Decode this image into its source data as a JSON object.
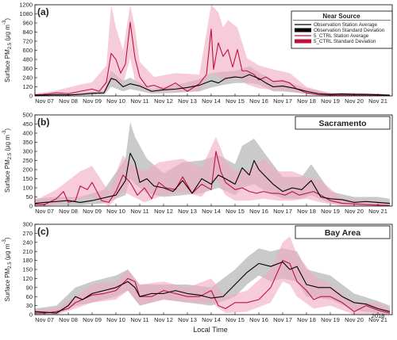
{
  "figure": {
    "xlabel": "Local Time",
    "year_label": "2018",
    "ylabel": "Surface PM",
    "ylabel_sub": "2.5",
    "ylabel_unit": "(μg m",
    "ylabel_unit_sup": "-3",
    "ylabel_close": ")",
    "x_ticks": [
      "Nov 07",
      "Nov 08",
      "Nov 09",
      "Nov 10",
      "Nov 11",
      "Nov 12",
      "Nov 13",
      "Nov 14",
      "Nov 15",
      "Nov 16",
      "Nov 17",
      "Nov 18",
      "Nov 19",
      "Nov 20",
      "Nov 21"
    ],
    "colors": {
      "obs_line": "#000000",
      "obs_band": "#b8b8b8",
      "model_line": "#c0103c",
      "model_band": "#f2aac2"
    },
    "legend": {
      "title": "Near Source",
      "items": [
        {
          "label": "Observation Station Average",
          "kind": "obs_line"
        },
        {
          "label": "Observation Standard Deviation",
          "kind": "obs_band"
        },
        {
          "label": "5_CTRL Station Average",
          "kind": "model_line"
        },
        {
          "label": "5_CTRL Standard Deviation",
          "kind": "model_band"
        }
      ]
    }
  },
  "chart_data": [
    {
      "type": "line",
      "panel": "(a)",
      "box_title": "",
      "xlim": [
        6.6,
        21.6
      ],
      "ylim": [
        0,
        1200
      ],
      "yticks": [
        0,
        120,
        240,
        360,
        480,
        600,
        720,
        840,
        960,
        1080,
        1200
      ],
      "series": [
        {
          "name": "Observation Station Average",
          "x": [
            6.6,
            7.0,
            7.5,
            8.0,
            8.5,
            9.0,
            9.5,
            9.8,
            10.0,
            10.3,
            10.6,
            11.0,
            11.5,
            12.0,
            12.5,
            13.0,
            13.5,
            14.0,
            14.3,
            14.6,
            15.0,
            15.3,
            15.6,
            16.0,
            16.3,
            16.6,
            17.0,
            17.5,
            18.0,
            18.5,
            19.0,
            19.5,
            20.0,
            20.5,
            21.0,
            21.5
          ],
          "y": [
            8,
            10,
            15,
            12,
            20,
            35,
            40,
            230,
            210,
            120,
            160,
            130,
            60,
            80,
            90,
            110,
            140,
            200,
            170,
            230,
            250,
            240,
            280,
            230,
            170,
            120,
            130,
            100,
            60,
            30,
            20,
            25,
            20,
            20,
            15,
            10
          ]
        },
        {
          "name": "5_CTRL Station Average",
          "x": [
            6.6,
            7.0,
            7.5,
            8.0,
            8.5,
            9.0,
            9.3,
            9.6,
            9.8,
            10.0,
            10.2,
            10.4,
            10.6,
            10.8,
            11.0,
            11.3,
            11.6,
            12.0,
            12.5,
            13.0,
            13.5,
            13.8,
            14.0,
            14.1,
            14.3,
            14.5,
            14.7,
            14.9,
            15.1,
            15.3,
            15.5,
            15.8,
            16.0,
            16.3,
            16.6,
            17.0,
            17.3,
            17.6,
            18.0,
            18.5,
            19.0,
            19.5,
            20.0,
            20.5,
            21.0,
            21.5
          ],
          "y": [
            15,
            20,
            40,
            30,
            60,
            90,
            60,
            180,
            560,
            480,
            300,
            420,
            970,
            500,
            250,
            120,
            140,
            90,
            170,
            60,
            160,
            280,
            880,
            350,
            700,
            520,
            610,
            380,
            610,
            330,
            330,
            280,
            210,
            250,
            190,
            200,
            170,
            90,
            40,
            15,
            10,
            10,
            12,
            8,
            6,
            5
          ]
        }
      ],
      "bands": [
        {
          "name": "Observation Standard Deviation",
          "x": [
            6.6,
            7.5,
            8.5,
            9.5,
            9.8,
            10.3,
            10.6,
            11.5,
            12.5,
            13.5,
            14.0,
            14.6,
            15.0,
            15.6,
            16.0,
            16.6,
            17.0,
            18.0,
            19.0,
            20.0,
            21.0,
            21.5
          ],
          "lower": [
            0,
            5,
            10,
            15,
            120,
            60,
            90,
            30,
            40,
            60,
            110,
            150,
            170,
            170,
            150,
            60,
            60,
            30,
            10,
            10,
            5,
            5
          ],
          "upper": [
            20,
            30,
            40,
            70,
            330,
            200,
            240,
            90,
            140,
            220,
            300,
            320,
            330,
            390,
            310,
            200,
            200,
            100,
            40,
            40,
            30,
            20
          ]
        },
        {
          "name": "5_CTRL Standard Deviation",
          "x": [
            6.6,
            7.5,
            8.5,
            9.0,
            9.6,
            9.8,
            10.0,
            10.3,
            10.6,
            10.8,
            11.0,
            11.6,
            12.5,
            13.5,
            14.0,
            14.3,
            14.5,
            14.7,
            15.1,
            15.5,
            16.0,
            16.6,
            17.3,
            18.0,
            19.0,
            20.0,
            21.0,
            21.5
          ],
          "lower": [
            5,
            10,
            20,
            30,
            60,
            200,
            200,
            150,
            500,
            200,
            100,
            60,
            60,
            60,
            300,
            250,
            200,
            200,
            250,
            150,
            100,
            80,
            60,
            20,
            5,
            5,
            3,
            3
          ],
          "upper": [
            30,
            70,
            150,
            180,
            400,
            1200,
            900,
            600,
            1200,
            900,
            450,
            250,
            300,
            280,
            1200,
            1100,
            900,
            1000,
            900,
            500,
            400,
            350,
            300,
            120,
            30,
            30,
            25,
            20
          ]
        }
      ]
    },
    {
      "type": "line",
      "panel": "(b)",
      "box_title": "Sacramento",
      "xlim": [
        6.6,
        21.6
      ],
      "ylim": [
        0,
        500
      ],
      "yticks": [
        0,
        50,
        100,
        150,
        200,
        250,
        300,
        350,
        400,
        450,
        500
      ],
      "series": [
        {
          "name": "Observation Station Average",
          "x": [
            6.6,
            7.0,
            7.5,
            8.0,
            8.5,
            9.0,
            9.5,
            10.0,
            10.4,
            10.6,
            10.8,
            11.0,
            11.3,
            11.6,
            12.0,
            12.4,
            12.8,
            13.2,
            13.6,
            14.0,
            14.3,
            14.6,
            15.0,
            15.3,
            15.6,
            15.8,
            16.0,
            16.3,
            16.6,
            17.0,
            17.4,
            17.8,
            18.2,
            18.6,
            19.0,
            19.5,
            20.0,
            20.5,
            21.0,
            21.5
          ],
          "y": [
            15,
            20,
            25,
            30,
            20,
            30,
            45,
            60,
            140,
            290,
            240,
            130,
            150,
            110,
            100,
            80,
            140,
            70,
            150,
            120,
            170,
            150,
            120,
            210,
            170,
            250,
            200,
            160,
            120,
            80,
            100,
            90,
            140,
            50,
            40,
            35,
            20,
            25,
            20,
            15
          ]
        },
        {
          "name": "5_CTRL Station Average",
          "x": [
            6.6,
            7.0,
            7.5,
            7.8,
            8.0,
            8.3,
            8.5,
            8.8,
            9.0,
            9.4,
            9.7,
            10.0,
            10.3,
            10.6,
            10.9,
            11.2,
            11.5,
            11.8,
            12.1,
            12.5,
            12.8,
            13.2,
            13.6,
            14.0,
            14.2,
            14.4,
            14.6,
            14.8,
            15.0,
            15.3,
            15.6,
            15.9,
            16.2,
            16.5,
            16.8,
            17.1,
            17.4,
            17.7,
            18.0,
            18.3,
            18.6,
            19.0,
            19.5,
            20.0,
            20.5,
            21.0,
            21.5
          ],
          "y": [
            10,
            8,
            40,
            80,
            20,
            30,
            110,
            90,
            130,
            30,
            20,
            80,
            170,
            130,
            60,
            100,
            40,
            130,
            100,
            90,
            160,
            70,
            120,
            90,
            300,
            190,
            130,
            110,
            90,
            100,
            80,
            70,
            80,
            70,
            70,
            60,
            80,
            60,
            70,
            80,
            60,
            30,
            15,
            12,
            8,
            5,
            3
          ]
        }
      ],
      "bands": [
        {
          "name": "Observation Standard Deviation",
          "x": [
            6.6,
            7.5,
            8.5,
            9.5,
            10.4,
            10.6,
            10.8,
            11.3,
            12.0,
            12.8,
            13.6,
            14.3,
            15.0,
            15.3,
            15.8,
            16.3,
            17.0,
            17.8,
            18.2,
            19.0,
            20.0,
            21.0,
            21.5
          ],
          "lower": [
            0,
            5,
            5,
            15,
            60,
            150,
            120,
            70,
            50,
            60,
            70,
            100,
            60,
            100,
            120,
            80,
            40,
            40,
            60,
            15,
            5,
            5,
            5
          ],
          "upper": [
            40,
            50,
            50,
            90,
            260,
            460,
            380,
            260,
            180,
            240,
            250,
            280,
            230,
            330,
            370,
            280,
            160,
            160,
            230,
            80,
            50,
            50,
            40
          ]
        },
        {
          "name": "5_CTRL Standard Deviation",
          "x": [
            6.6,
            7.5,
            8.5,
            9.0,
            9.7,
            10.3,
            10.6,
            11.2,
            11.8,
            12.8,
            13.6,
            14.2,
            14.6,
            15.0,
            15.6,
            16.2,
            16.8,
            17.4,
            18.0,
            18.6,
            19.5,
            20.5,
            21.5
          ],
          "lower": [
            0,
            10,
            40,
            50,
            0,
            80,
            60,
            20,
            50,
            80,
            50,
            150,
            60,
            30,
            30,
            40,
            30,
            30,
            40,
            20,
            0,
            0,
            0
          ],
          "upper": [
            30,
            90,
            190,
            220,
            80,
            280,
            230,
            190,
            240,
            260,
            210,
            380,
            250,
            190,
            200,
            260,
            190,
            190,
            160,
            140,
            40,
            30,
            20
          ]
        }
      ]
    },
    {
      "type": "line",
      "panel": "(c)",
      "box_title": "Bay Area",
      "xlim": [
        6.6,
        21.6
      ],
      "ylim": [
        0,
        300
      ],
      "yticks": [
        0,
        30,
        60,
        90,
        120,
        150,
        180,
        210,
        240,
        270,
        300
      ],
      "series": [
        {
          "name": "Observation Station Average",
          "x": [
            6.6,
            7.0,
            7.5,
            8.0,
            8.3,
            8.6,
            9.0,
            9.5,
            10.0,
            10.5,
            10.8,
            11.0,
            11.5,
            12.0,
            12.5,
            13.0,
            13.5,
            14.0,
            14.5,
            15.0,
            15.5,
            16.0,
            16.5,
            17.0,
            17.3,
            17.6,
            18.0,
            18.5,
            19.0,
            19.5,
            20.0,
            20.5,
            21.0,
            21.5
          ],
          "y": [
            10,
            8,
            5,
            30,
            60,
            50,
            70,
            80,
            90,
            110,
            90,
            60,
            70,
            70,
            80,
            70,
            65,
            55,
            60,
            100,
            140,
            170,
            160,
            175,
            150,
            160,
            100,
            90,
            90,
            60,
            40,
            35,
            20,
            10
          ]
        },
        {
          "name": "5_CTRL Station Average",
          "x": [
            6.6,
            7.0,
            7.5,
            8.0,
            8.3,
            8.6,
            9.0,
            9.5,
            10.0,
            10.5,
            10.8,
            11.0,
            11.5,
            12.0,
            12.5,
            13.0,
            13.5,
            14.0,
            14.3,
            14.6,
            15.0,
            15.5,
            16.0,
            16.5,
            17.0,
            17.3,
            17.6,
            18.0,
            18.3,
            18.6,
            19.0,
            19.5,
            20.0,
            20.5,
            21.0,
            21.5
          ],
          "y": [
            5,
            5,
            10,
            20,
            40,
            50,
            65,
            70,
            80,
            120,
            110,
            60,
            60,
            80,
            70,
            60,
            60,
            80,
            30,
            20,
            40,
            40,
            50,
            90,
            180,
            170,
            110,
            80,
            50,
            60,
            60,
            40,
            10,
            30,
            15,
            5
          ]
        }
      ],
      "bands": [
        {
          "name": "Observation Standard Deviation",
          "x": [
            6.6,
            7.5,
            8.3,
            9.0,
            10.0,
            10.5,
            11.0,
            12.0,
            13.0,
            14.0,
            15.0,
            15.5,
            16.0,
            16.5,
            17.0,
            17.6,
            18.0,
            19.0,
            20.0,
            21.0,
            21.5
          ],
          "lower": [
            0,
            0,
            30,
            40,
            60,
            80,
            30,
            50,
            40,
            30,
            60,
            100,
            130,
            110,
            120,
            110,
            60,
            50,
            15,
            5,
            0
          ],
          "upper": [
            20,
            30,
            90,
            110,
            130,
            150,
            100,
            100,
            100,
            90,
            150,
            190,
            220,
            210,
            220,
            210,
            150,
            130,
            70,
            45,
            30
          ]
        },
        {
          "name": "5_CTRL Standard Deviation",
          "x": [
            6.6,
            7.5,
            8.3,
            9.0,
            10.0,
            10.5,
            11.0,
            12.0,
            13.0,
            14.0,
            14.6,
            15.5,
            16.5,
            17.0,
            17.3,
            17.6,
            18.3,
            19.0,
            20.0,
            21.0,
            21.5
          ],
          "lower": [
            0,
            0,
            20,
            40,
            50,
            80,
            30,
            50,
            40,
            40,
            5,
            10,
            40,
            110,
            100,
            60,
            20,
            30,
            0,
            0,
            0
          ],
          "upper": [
            15,
            20,
            60,
            100,
            110,
            150,
            100,
            110,
            90,
            120,
            60,
            80,
            150,
            240,
            260,
            200,
            130,
            100,
            40,
            40,
            20
          ]
        }
      ]
    }
  ]
}
